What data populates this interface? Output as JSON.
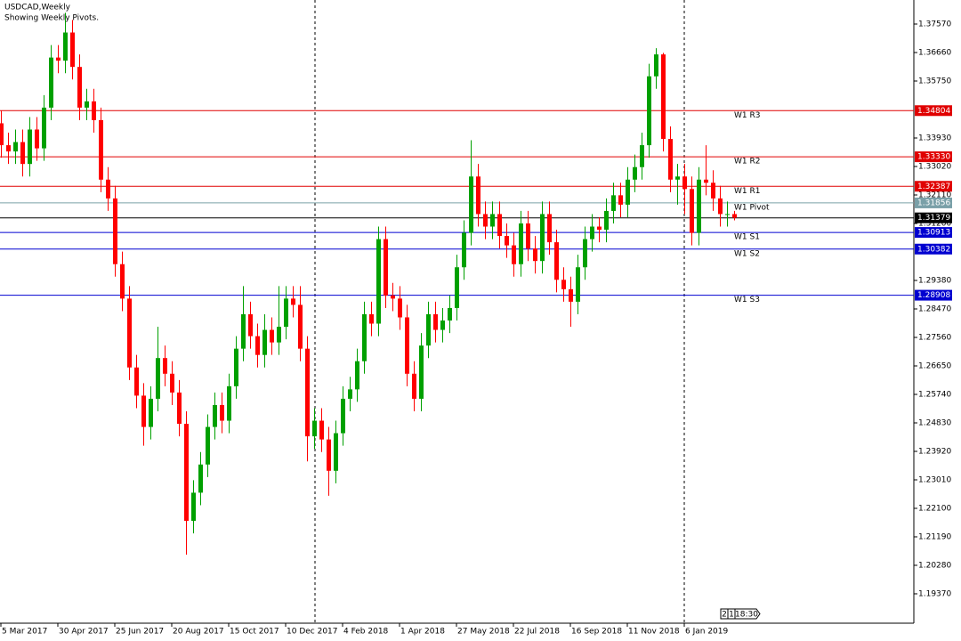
{
  "chart_data": {
    "type": "candlestick",
    "title": "USDCAD,Weekly",
    "subtitle": "Showing Weekly Pivots.",
    "categories": [
      "5 Mar 2017",
      null,
      null,
      null,
      null,
      null,
      null,
      null,
      "30 Apr 2017",
      null,
      null,
      null,
      null,
      null,
      null,
      null,
      "25 Jun 2017",
      null,
      null,
      null,
      null,
      null,
      null,
      null,
      "20 Aug 2017",
      null,
      null,
      null,
      null,
      null,
      null,
      null,
      "15 Oct 2017",
      null,
      null,
      null,
      null,
      null,
      null,
      null,
      "10 Dec 2017",
      null,
      null,
      null,
      null,
      null,
      null,
      null,
      "4 Feb 2018",
      null,
      null,
      null,
      null,
      null,
      null,
      null,
      "1 Apr 2018",
      null,
      null,
      null,
      null,
      null,
      null,
      null,
      "27 May 2018",
      null,
      null,
      null,
      null,
      null,
      null,
      null,
      "22 Jul 2018",
      null,
      null,
      null,
      null,
      null,
      null,
      null,
      "16 Sep 2018",
      null,
      null,
      null,
      null,
      null,
      null,
      null,
      "11 Nov 2018",
      null,
      null,
      null,
      null,
      null,
      null,
      null,
      "6 Jan 2019",
      null,
      null,
      null,
      null,
      null,
      null,
      null
    ],
    "open": [
      1.344,
      1.337,
      1.335,
      1.338,
      1.331,
      1.342,
      1.336,
      1.349,
      1.365,
      1.364,
      1.373,
      1.362,
      1.349,
      1.351,
      1.345,
      1.326,
      1.32,
      1.299,
      1.288,
      1.266,
      1.257,
      1.247,
      1.256,
      1.269,
      1.264,
      1.258,
      1.248,
      1.217,
      1.226,
      1.235,
      1.247,
      1.254,
      1.249,
      1.26,
      1.272,
      1.283,
      1.276,
      1.27,
      1.278,
      1.274,
      1.279,
      1.288,
      1.286,
      1.272,
      1.244,
      1.249,
      1.243,
      1.233,
      1.245,
      1.256,
      1.259,
      1.268,
      1.283,
      1.28,
      1.307,
      1.289,
      1.288,
      1.282,
      1.264,
      1.256,
      1.273,
      1.283,
      1.278,
      1.281,
      1.285,
      1.298,
      1.309,
      1.327,
      1.315,
      1.311,
      1.315,
      1.308,
      1.305,
      1.299,
      1.312,
      1.304,
      1.3,
      1.315,
      1.306,
      1.294,
      1.291,
      1.287,
      1.298,
      1.307,
      1.311,
      1.31,
      1.316,
      1.321,
      1.318,
      1.326,
      1.33,
      1.337,
      1.359,
      1.366,
      1.339,
      1.326,
      1.327,
      1.323,
      1.309,
      1.326,
      1.325,
      1.32,
      1.315,
      1.315
    ],
    "high": [
      1.348,
      1.341,
      1.342,
      1.342,
      1.346,
      1.346,
      1.353,
      1.369,
      1.369,
      1.3793,
      1.377,
      1.366,
      1.355,
      1.355,
      1.349,
      1.33,
      1.324,
      1.303,
      1.292,
      1.27,
      1.261,
      1.26,
      1.279,
      1.273,
      1.268,
      1.262,
      1.252,
      1.23,
      1.239,
      1.251,
      1.258,
      1.258,
      1.264,
      1.276,
      1.292,
      1.287,
      1.28,
      1.283,
      1.282,
      1.292,
      1.292,
      1.292,
      1.292,
      1.276,
      1.253,
      1.253,
      1.247,
      1.249,
      1.26,
      1.263,
      1.272,
      1.287,
      1.287,
      1.311,
      1.311,
      1.293,
      1.292,
      1.286,
      1.268,
      1.277,
      1.287,
      1.287,
      1.285,
      1.289,
      1.302,
      1.313,
      1.3386,
      1.331,
      1.319,
      1.319,
      1.319,
      1.312,
      1.309,
      1.316,
      1.316,
      1.308,
      1.319,
      1.319,
      1.31,
      1.298,
      1.295,
      1.302,
      1.311,
      1.315,
      1.314,
      1.32,
      1.325,
      1.325,
      1.33,
      1.334,
      1.341,
      1.363,
      1.368,
      1.3665,
      1.343,
      1.331,
      1.331,
      1.327,
      1.33,
      1.337,
      1.329,
      1.324,
      1.319,
      1.316
    ],
    "low": [
      1.333,
      1.331,
      1.331,
      1.327,
      1.327,
      1.332,
      1.332,
      1.345,
      1.36,
      1.36,
      1.358,
      1.345,
      1.345,
      1.341,
      1.322,
      1.316,
      1.295,
      1.284,
      1.262,
      1.253,
      1.241,
      1.243,
      1.252,
      1.26,
      1.254,
      1.244,
      1.2062,
      1.213,
      1.222,
      1.231,
      1.243,
      1.245,
      1.245,
      1.256,
      1.268,
      1.272,
      1.266,
      1.266,
      1.27,
      1.27,
      1.275,
      1.282,
      1.268,
      1.236,
      1.24,
      1.239,
      1.225,
      1.229,
      1.241,
      1.252,
      1.255,
      1.264,
      1.276,
      1.276,
      1.285,
      1.284,
      1.278,
      1.26,
      1.252,
      1.252,
      1.269,
      1.274,
      1.274,
      1.277,
      1.281,
      1.294,
      1.305,
      1.311,
      1.307,
      1.307,
      1.304,
      1.301,
      1.295,
      1.295,
      1.3,
      1.296,
      1.296,
      1.302,
      1.29,
      1.287,
      1.279,
      1.283,
      1.294,
      1.303,
      1.306,
      1.306,
      1.312,
      1.314,
      1.314,
      1.322,
      1.326,
      1.333,
      1.355,
      1.335,
      1.322,
      1.318,
      1.315,
      1.305,
      1.305,
      1.321,
      1.316,
      1.311,
      1.311,
      1.313
    ],
    "close": [
      1.337,
      1.335,
      1.338,
      1.331,
      1.342,
      1.336,
      1.349,
      1.365,
      1.364,
      1.373,
      1.362,
      1.349,
      1.351,
      1.345,
      1.326,
      1.32,
      1.299,
      1.288,
      1.266,
      1.257,
      1.247,
      1.256,
      1.269,
      1.264,
      1.258,
      1.248,
      1.217,
      1.226,
      1.235,
      1.247,
      1.254,
      1.249,
      1.26,
      1.272,
      1.283,
      1.276,
      1.27,
      1.278,
      1.274,
      1.279,
      1.288,
      1.286,
      1.272,
      1.244,
      1.249,
      1.243,
      1.233,
      1.245,
      1.256,
      1.259,
      1.268,
      1.283,
      1.28,
      1.307,
      1.289,
      1.288,
      1.282,
      1.264,
      1.256,
      1.273,
      1.283,
      1.278,
      1.281,
      1.285,
      1.298,
      1.309,
      1.327,
      1.315,
      1.311,
      1.315,
      1.308,
      1.305,
      1.299,
      1.312,
      1.304,
      1.3,
      1.315,
      1.306,
      1.294,
      1.291,
      1.287,
      1.298,
      1.307,
      1.311,
      1.31,
      1.316,
      1.321,
      1.318,
      1.326,
      1.33,
      1.337,
      1.359,
      1.366,
      1.339,
      1.326,
      1.327,
      1.323,
      1.309,
      1.326,
      1.325,
      1.32,
      1.315,
      1.315,
      1.3138
    ],
    "up_color": "#00a000",
    "down_color": "#ff0000",
    "ylim": [
      1.18431,
      1.38338
    ],
    "yticks": [
      {
        "value": 1.3757,
        "label": "1.37570"
      },
      {
        "value": 1.3666,
        "label": "1.36660"
      },
      {
        "value": 1.3575,
        "label": "1.35750"
      },
      {
        "value": 1.3393,
        "label": "1.33930"
      },
      {
        "value": 1.3302,
        "label": "1.33020"
      },
      {
        "value": 1.3211,
        "label": "1.32110"
      },
      {
        "value": 1.312,
        "label": "1.31200"
      },
      {
        "value": 1.2938,
        "label": "1.29380"
      },
      {
        "value": 1.2847,
        "label": "1.28470"
      },
      {
        "value": 1.2756,
        "label": "1.27560"
      },
      {
        "value": 1.2665,
        "label": "1.26650"
      },
      {
        "value": 1.2574,
        "label": "1.25740"
      },
      {
        "value": 1.2483,
        "label": "1.24830"
      },
      {
        "value": 1.2392,
        "label": "1.23920"
      },
      {
        "value": 1.2301,
        "label": "1.23010"
      },
      {
        "value": 1.221,
        "label": "1.22100"
      },
      {
        "value": 1.2119,
        "label": "1.21190"
      },
      {
        "value": 1.2028,
        "label": "1.20280"
      },
      {
        "value": 1.1937,
        "label": "1.19370"
      }
    ],
    "levels": [
      {
        "name": "W1 R3",
        "value": 1.34804,
        "color": "#e00000"
      },
      {
        "name": "W1 R2",
        "value": 1.3333,
        "value_label": "1.33330",
        "color": "#e00000"
      },
      {
        "name": "W1 R1",
        "value": 1.32387,
        "color": "#e00000"
      },
      {
        "name": "W1 Pivot",
        "value": 1.31856,
        "color": "#7aa0a8"
      },
      {
        "name": "W1 S1",
        "value": 1.30913,
        "color": "#0000d0"
      },
      {
        "name": "W1 S2",
        "value": 1.30382,
        "color": "#0000d0"
      },
      {
        "name": "W1 S3",
        "value": 1.28908,
        "color": "#0000d0"
      }
    ],
    "current_price": 1.31379,
    "current_color": "#000000"
  },
  "status": {
    "labels": [
      "2",
      "1",
      "18:30"
    ]
  }
}
